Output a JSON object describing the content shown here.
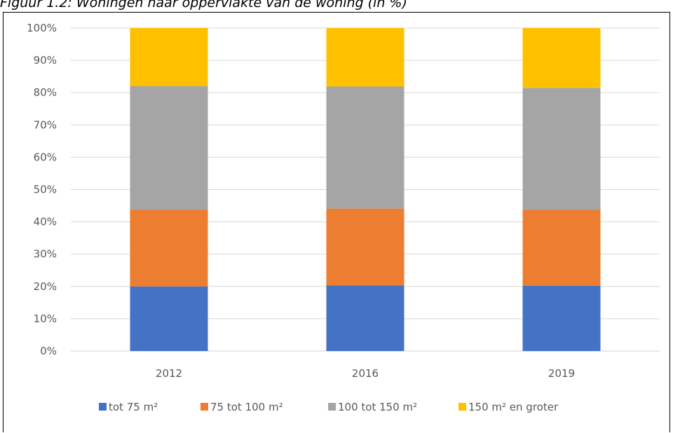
{
  "figure": {
    "caption": "Figuur 1.2: Woningen naar oppervlakte van de woning (in %)"
  },
  "chart_data": {
    "type": "bar",
    "stacked": true,
    "categories": [
      "2012",
      "2016",
      "2019"
    ],
    "series": [
      {
        "name": "tot 75 m²",
        "color": "#4472C4",
        "values": [
          20,
          20.3,
          20.2
        ]
      },
      {
        "name": "75 tot 100 m²",
        "color": "#ED7D31",
        "values": [
          23.7,
          23.8,
          23.5
        ]
      },
      {
        "name": "100 tot 150 m²",
        "color": "#A5A5A5",
        "values": [
          38.3,
          37.8,
          37.8
        ]
      },
      {
        "name": "150 m² en groter",
        "color": "#FFC000",
        "values": [
          18,
          18.1,
          18.5
        ]
      }
    ],
    "y_ticks": [
      "0%",
      "10%",
      "20%",
      "30%",
      "40%",
      "50%",
      "60%",
      "70%",
      "80%",
      "90%",
      "100%"
    ],
    "ylim": [
      0,
      100
    ],
    "grid": true,
    "legend_position": "bottom"
  }
}
